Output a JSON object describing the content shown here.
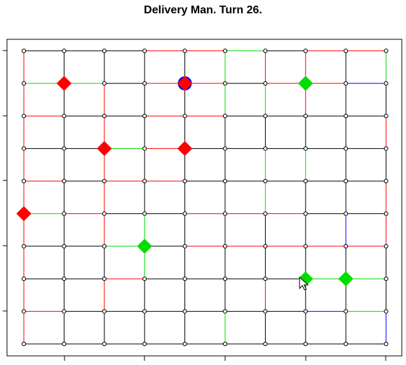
{
  "title": "Delivery Man. Turn 26.",
  "colors": {
    "free": "#000000",
    "light": "#00dd00",
    "medium": "#ff0000",
    "heavy": "#0000ff",
    "node_fill": "#ffffff",
    "node_stroke": "#000000",
    "player": "#0000ff"
  },
  "grid": {
    "cols": 10,
    "rows": 10
  },
  "plot": {
    "xlim": [
      0.5,
      10.5
    ],
    "ylim": [
      0.5,
      10.5
    ]
  },
  "hroads": [
    "KKKMMLKMM",
    "LLKMMKMMB",
    "MKKMMKKKK",
    "KKLMKKKKK",
    "MKMMKKKKK",
    "LMKKMMMKK",
    "KKLKMMMMM",
    "KKMKKKKLL",
    "MKKKKKKBL",
    "KKKKKKKKK"
  ],
  "vroads": [
    "MMMMMMMMM",
    "KKKKKKKKK",
    "KMKMMMMMK",
    "KKLLKKKKK",
    "KKKKKKKKK",
    "LKKKKKKLL",
    "KMKKLLKLM",
    "KKKKKLKMM",
    "KKKBKKKKK",
    "BKKMMKMKL"
  ],
  "packages_pickup": [
    {
      "x": 2,
      "y": 9
    },
    {
      "x": 5,
      "y": 9
    },
    {
      "x": 3,
      "y": 7
    },
    {
      "x": 5,
      "y": 7
    },
    {
      "x": 1,
      "y": 5
    }
  ],
  "packages_dropoff": [
    {
      "x": 8,
      "y": 9
    },
    {
      "x": 4,
      "y": 4
    },
    {
      "x": 8,
      "y": 3
    },
    {
      "x": 9,
      "y": 3
    }
  ],
  "player": {
    "x": 5,
    "y": 9
  },
  "cursor": {
    "x": 7.85,
    "y": 3.05
  }
}
